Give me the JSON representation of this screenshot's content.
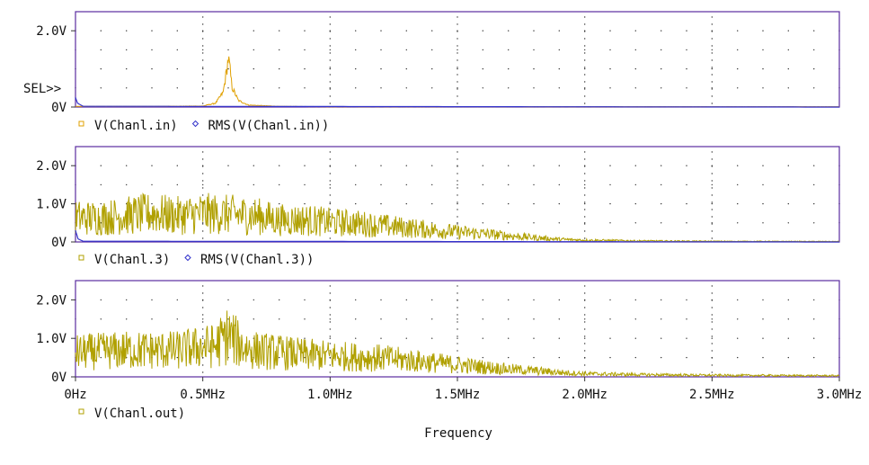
{
  "sel_marker": "SEL>>",
  "xlabel": "Frequency",
  "colors": {
    "frame": "#5a2ca0",
    "trace": "#b0a000",
    "trace_in": "#e0a000",
    "rms": "#3333cc",
    "grid": "#333333",
    "text": "#111111"
  },
  "chart_data": [
    {
      "type": "line",
      "x_ticks": [],
      "xlim": [
        0,
        3000000
      ],
      "ylim": [
        0,
        2.5
      ],
      "y_ticks": [
        {
          "value": 0,
          "label": "0V"
        },
        {
          "value": 2,
          "label": "2.0V"
        }
      ],
      "legend": [
        {
          "symbol": "square",
          "label": "V(Chanl.in)"
        },
        {
          "symbol": "diamond",
          "label": "RMS(V(Chanl.in))"
        }
      ],
      "series": [
        {
          "name": "V(Chanl.in)",
          "role": "trace_in",
          "peaks": [
            [
              0,
              0.02
            ],
            [
              300000,
              0.02
            ],
            [
              500000,
              0.03
            ],
            [
              550000,
              0.12
            ],
            [
              580000,
              0.45
            ],
            [
              595000,
              1.2
            ],
            [
              600000,
              1.5
            ],
            [
              605000,
              1.3
            ],
            [
              615000,
              0.6
            ],
            [
              640000,
              0.2
            ],
            [
              680000,
              0.06
            ],
            [
              800000,
              0.02
            ],
            [
              1000000,
              0.01
            ],
            [
              3000000,
              0.01
            ]
          ]
        },
        {
          "name": "RMS(V(Chanl.in))",
          "role": "rms",
          "peaks": [
            [
              0,
              0.25
            ],
            [
              8000,
              0.1
            ],
            [
              30000,
              0.02
            ],
            [
              3000000,
              0.0
            ]
          ]
        }
      ]
    },
    {
      "type": "line",
      "x_ticks": [],
      "xlim": [
        0,
        3000000
      ],
      "ylim": [
        0,
        2.5
      ],
      "y_ticks": [
        {
          "value": 0,
          "label": "0V"
        },
        {
          "value": 1,
          "label": "1.0V"
        },
        {
          "value": 2,
          "label": "2.0V"
        }
      ],
      "legend": [
        {
          "symbol": "square",
          "label": "V(Chanl.3)"
        },
        {
          "symbol": "diamond",
          "label": "RMS(V(Chanl.3))"
        }
      ],
      "series": [
        {
          "name": "V(Chanl.3)",
          "role": "trace",
          "peaks": [
            [
              0,
              1.1
            ],
            [
              100000,
              1.1
            ],
            [
              200000,
              1.2
            ],
            [
              300000,
              1.3
            ],
            [
              400000,
              1.2
            ],
            [
              500000,
              1.3
            ],
            [
              600000,
              1.25
            ],
            [
              700000,
              1.2
            ],
            [
              800000,
              1.0
            ],
            [
              900000,
              1.0
            ],
            [
              1000000,
              0.9
            ],
            [
              1100000,
              0.85
            ],
            [
              1200000,
              0.75
            ],
            [
              1300000,
              0.65
            ],
            [
              1400000,
              0.55
            ],
            [
              1500000,
              0.45
            ],
            [
              1600000,
              0.38
            ],
            [
              1700000,
              0.28
            ],
            [
              1800000,
              0.2
            ],
            [
              1900000,
              0.12
            ],
            [
              2000000,
              0.08
            ],
            [
              2200000,
              0.05
            ],
            [
              2500000,
              0.03
            ],
            [
              3000000,
              0.02
            ]
          ]
        },
        {
          "name": "RMS(V(Chanl.3))",
          "role": "rms",
          "peaks": [
            [
              0,
              0.3
            ],
            [
              10000,
              0.08
            ],
            [
              30000,
              0.02
            ],
            [
              3000000,
              0.0
            ]
          ]
        }
      ]
    },
    {
      "type": "line",
      "x_ticks": [
        {
          "value": 0,
          "label": "0Hz"
        },
        {
          "value": 500000,
          "label": "0.5MHz"
        },
        {
          "value": 1000000,
          "label": "1.0MHz"
        },
        {
          "value": 1500000,
          "label": "1.5MHz"
        },
        {
          "value": 2000000,
          "label": "2.0MHz"
        },
        {
          "value": 2500000,
          "label": "2.5MHz"
        },
        {
          "value": 3000000,
          "label": "3.0MHz"
        }
      ],
      "xlim": [
        0,
        3000000
      ],
      "ylim": [
        0,
        2.5
      ],
      "y_ticks": [
        {
          "value": 0,
          "label": "0V"
        },
        {
          "value": 1,
          "label": "1.0V"
        },
        {
          "value": 2,
          "label": "2.0V"
        }
      ],
      "legend": [
        {
          "symbol": "square",
          "label": "V(Chanl.out)"
        }
      ],
      "series": [
        {
          "name": "V(Chanl.out)",
          "role": "trace",
          "peaks": [
            [
              0,
              1.1
            ],
            [
              100000,
              1.15
            ],
            [
              200000,
              1.2
            ],
            [
              300000,
              1.2
            ],
            [
              400000,
              1.2
            ],
            [
              500000,
              1.35
            ],
            [
              550000,
              1.4
            ],
            [
              600000,
              1.9
            ],
            [
              650000,
              1.4
            ],
            [
              700000,
              1.2
            ],
            [
              800000,
              1.1
            ],
            [
              900000,
              1.0
            ],
            [
              1000000,
              0.95
            ],
            [
              1100000,
              0.9
            ],
            [
              1200000,
              0.85
            ],
            [
              1300000,
              0.75
            ],
            [
              1400000,
              0.65
            ],
            [
              1500000,
              0.55
            ],
            [
              1600000,
              0.45
            ],
            [
              1700000,
              0.35
            ],
            [
              1800000,
              0.28
            ],
            [
              1900000,
              0.2
            ],
            [
              2000000,
              0.14
            ],
            [
              2200000,
              0.1
            ],
            [
              2500000,
              0.07
            ],
            [
              3000000,
              0.05
            ]
          ]
        }
      ]
    }
  ]
}
